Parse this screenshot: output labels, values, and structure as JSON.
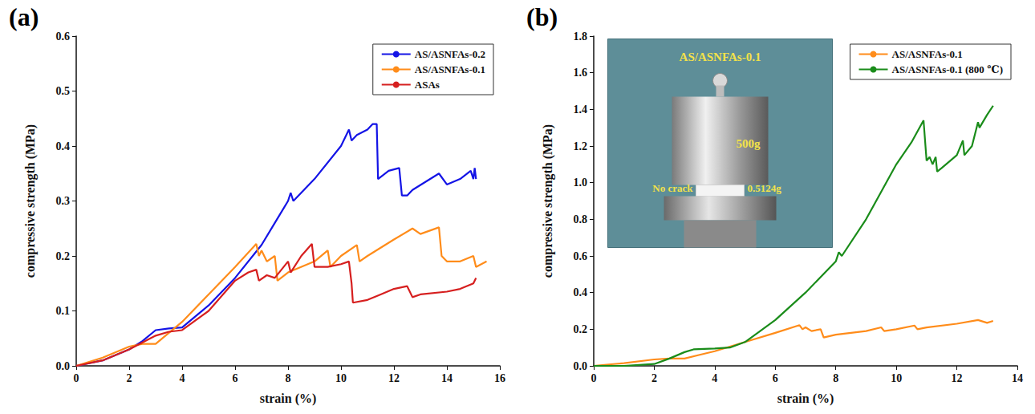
{
  "chart_data": [
    {
      "type": "line",
      "title": "(a)",
      "x_label": "strain (%)",
      "y_label": "compressive strength (MPa)",
      "xlim": [
        0,
        16
      ],
      "xticks": [
        0,
        2,
        4,
        6,
        8,
        10,
        12,
        14,
        16
      ],
      "ylim": [
        0,
        0.6
      ],
      "yticks": [
        {
          "value": 0,
          "label": "0.0"
        },
        {
          "value": 0.1,
          "label": "0.1"
        },
        {
          "value": 0.2,
          "label": "0.2"
        },
        {
          "value": 0.3,
          "label": "0.3"
        },
        {
          "value": 0.4,
          "label": "0.4"
        },
        {
          "value": 0.5,
          "label": "0.5"
        },
        {
          "value": 0.6,
          "label": "0.6"
        }
      ],
      "grid": false,
      "legend": "upper right",
      "series": [
        {
          "name": "AS/ASNFAs-0.2",
          "color": "#1414e6",
          "x": [
            0,
            1,
            2,
            2.5,
            3,
            3.5,
            4,
            4.5,
            5,
            6,
            7,
            7.5,
            8,
            8.1,
            8.2,
            9,
            10,
            10.3,
            10.4,
            10.6,
            11,
            11.2,
            11.35,
            11.4,
            11.8,
            12.2,
            12.3,
            12.5,
            12.7,
            13.7,
            14,
            14.5,
            14.9,
            15,
            15.05,
            15.1
          ],
          "values": [
            0,
            0.01,
            0.03,
            0.045,
            0.065,
            0.068,
            0.07,
            0.09,
            0.11,
            0.16,
            0.22,
            0.26,
            0.3,
            0.315,
            0.3,
            0.34,
            0.4,
            0.43,
            0.41,
            0.42,
            0.43,
            0.44,
            0.44,
            0.34,
            0.355,
            0.36,
            0.31,
            0.31,
            0.32,
            0.35,
            0.33,
            0.34,
            0.355,
            0.34,
            0.36,
            0.34
          ]
        },
        {
          "name": "AS/ASNFAs-0.1",
          "color": "#ff8c1a",
          "x": [
            0,
            1,
            2,
            2.5,
            3,
            3.5,
            4,
            5,
            6,
            6.8,
            6.9,
            7,
            7.2,
            7.5,
            7.6,
            8,
            9,
            9.5,
            9.6,
            10,
            10.6,
            10.7,
            11,
            12,
            12.7,
            13,
            13.7,
            13.8,
            14,
            14.5,
            15,
            15.1,
            15.5
          ],
          "values": [
            0,
            0.015,
            0.035,
            0.04,
            0.04,
            0.06,
            0.08,
            0.13,
            0.18,
            0.222,
            0.2,
            0.21,
            0.19,
            0.2,
            0.155,
            0.17,
            0.19,
            0.21,
            0.18,
            0.2,
            0.22,
            0.19,
            0.2,
            0.23,
            0.25,
            0.24,
            0.252,
            0.2,
            0.19,
            0.19,
            0.2,
            0.18,
            0.19
          ]
        },
        {
          "name": "ASAs",
          "color": "#d61f1f",
          "x": [
            0,
            1,
            2,
            3,
            3.5,
            4,
            5,
            6,
            6.5,
            6.8,
            6.9,
            7.2,
            7.5,
            8,
            8.1,
            8.5,
            8.9,
            9,
            9.5,
            10,
            10.3,
            10.4,
            10.45,
            11,
            11.5,
            12,
            12.5,
            12.7,
            13,
            14,
            14.5,
            15,
            15.1
          ],
          "values": [
            0,
            0.01,
            0.03,
            0.055,
            0.062,
            0.065,
            0.1,
            0.155,
            0.17,
            0.175,
            0.155,
            0.165,
            0.16,
            0.19,
            0.17,
            0.2,
            0.222,
            0.18,
            0.18,
            0.185,
            0.19,
            0.15,
            0.115,
            0.12,
            0.13,
            0.14,
            0.145,
            0.125,
            0.13,
            0.135,
            0.14,
            0.15,
            0.16
          ]
        }
      ]
    },
    {
      "type": "line",
      "title": "(b)",
      "x_label": "strain (%)",
      "y_label": "compressive strength (MPa)",
      "xlim": [
        0,
        14
      ],
      "xticks": [
        0,
        2,
        4,
        6,
        8,
        10,
        12,
        14
      ],
      "ylim": [
        0,
        1.8
      ],
      "yticks": [
        {
          "value": 0,
          "label": "0.0"
        },
        {
          "value": 0.2,
          "label": "0.2"
        },
        {
          "value": 0.4,
          "label": "0.4"
        },
        {
          "value": 0.6,
          "label": "0.6"
        },
        {
          "value": 0.8,
          "label": "0.8"
        },
        {
          "value": 1,
          "label": "1.0"
        },
        {
          "value": 1.2,
          "label": "1.2"
        },
        {
          "value": 1.4,
          "label": "1.4"
        },
        {
          "value": 1.6,
          "label": "1.6"
        },
        {
          "value": 1.8,
          "label": "1.8"
        }
      ],
      "grid": false,
      "legend": "upper right",
      "annotations": [
        "AS/ASNFAs-0.1",
        "500g",
        "No crack",
        "0.5124g"
      ],
      "series": [
        {
          "name": "AS/ASNFAs-0.1",
          "color": "#ff8c1a",
          "x": [
            0,
            1,
            2,
            2.5,
            3,
            3.5,
            4,
            5,
            6,
            6.8,
            6.9,
            7,
            7.2,
            7.5,
            7.6,
            8,
            9,
            9.5,
            9.6,
            10,
            10.6,
            10.7,
            11,
            12,
            12.7,
            13,
            13.2
          ],
          "values": [
            0,
            0.015,
            0.035,
            0.04,
            0.04,
            0.06,
            0.08,
            0.13,
            0.18,
            0.222,
            0.2,
            0.21,
            0.19,
            0.2,
            0.155,
            0.17,
            0.19,
            0.21,
            0.19,
            0.2,
            0.22,
            0.2,
            0.21,
            0.23,
            0.25,
            0.235,
            0.245
          ]
        },
        {
          "name": "AS/ASNFAs-0.1 (800 ℃)",
          "color": "#1a8c1a",
          "x": [
            0,
            1,
            2,
            2.5,
            3,
            3.3,
            4,
            4.5,
            5,
            6,
            7,
            8,
            8.1,
            8.2,
            9,
            10,
            10.5,
            10.9,
            11,
            11.1,
            11.2,
            11.3,
            11.35,
            11.5,
            12,
            12.2,
            12.25,
            12.5,
            12.7,
            12.75,
            13,
            13.2
          ],
          "values": [
            0,
            0,
            0.01,
            0.04,
            0.075,
            0.09,
            0.095,
            0.1,
            0.13,
            0.25,
            0.4,
            0.57,
            0.62,
            0.6,
            0.8,
            1.1,
            1.22,
            1.34,
            1.12,
            1.14,
            1.1,
            1.14,
            1.06,
            1.08,
            1.15,
            1.23,
            1.15,
            1.2,
            1.33,
            1.3,
            1.37,
            1.42
          ]
        }
      ]
    }
  ]
}
